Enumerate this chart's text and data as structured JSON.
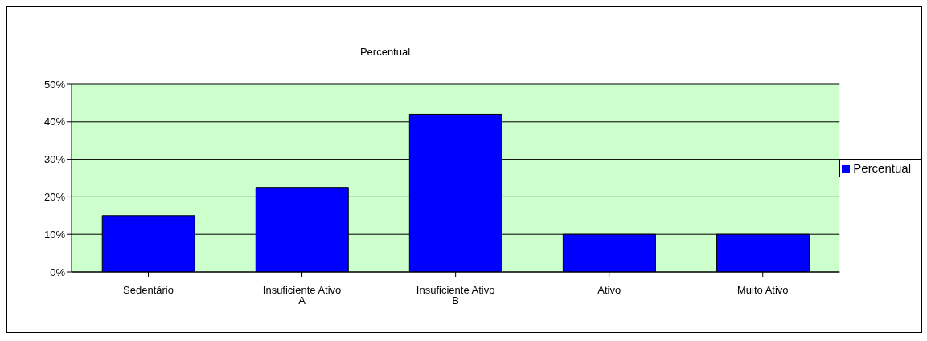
{
  "chart_data": {
    "type": "bar",
    "title": "Percentual",
    "categories": [
      "Sedentário",
      "Insuficiente Ativo A",
      "Insuficiente Ativo B",
      "Ativo",
      "Muito Ativo"
    ],
    "series": [
      {
        "name": "Percentual",
        "color": "#0000ff",
        "values": [
          15,
          22.5,
          42,
          10,
          10
        ]
      }
    ],
    "ylim": [
      0,
      50
    ],
    "yticks": [
      {
        "value": 0,
        "label": "0%"
      },
      {
        "value": 10,
        "label": "10%"
      },
      {
        "value": 20,
        "label": "20%"
      },
      {
        "value": 30,
        "label": "30%"
      },
      {
        "value": 40,
        "label": "40%"
      },
      {
        "value": 50,
        "label": "50%"
      }
    ],
    "grid": "y",
    "legend": "right"
  }
}
